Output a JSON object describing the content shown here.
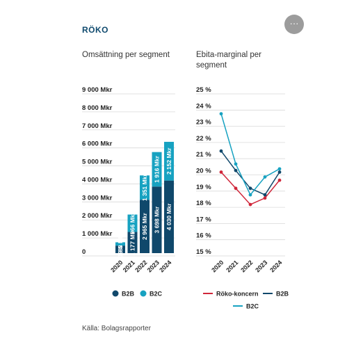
{
  "header": {
    "title": "RÖKO",
    "menu_icon": "ellipsis-icon",
    "menu_label": "···"
  },
  "source_text": "Källa: Bolagsrapporter",
  "colors": {
    "b2b": "#10486b",
    "b2c": "#17a2c1",
    "koncern": "#d0263a",
    "grid": "#d9d9d9"
  },
  "chart_data": [
    {
      "type": "bar",
      "stacked": true,
      "title": "Omsättning per segment",
      "categories": [
        "2020",
        "2021",
        "2022",
        "2023",
        "2024"
      ],
      "series": [
        {
          "name": "B2B",
          "values": [
            419,
            1177,
            2965,
            3698,
            4030
          ],
          "labels": [
            "419 Mkr",
            "1 177 Mkr",
            "2 965 Mkr",
            "3 698 Mkr",
            "4 030 Mkr"
          ]
        },
        {
          "name": "B2C",
          "values": [
            183,
            966,
            1351,
            1916,
            2152
          ],
          "labels": [
            "183 Mkr",
            "966 Mkr",
            "1 351 Mkr",
            "1 916 Mkr",
            "2 152 Mkr"
          ]
        }
      ],
      "yticks": [
        "0",
        "1 000 Mkr",
        "2 000 Mkr",
        "3 000 Mkr",
        "4 000 Mkr",
        "5 000 Mkr",
        "6 000 Mkr",
        "7 000 Mkr",
        "8 000 Mkr",
        "9 000 Mkr"
      ],
      "ylim": [
        0,
        9000
      ],
      "legend": "bottom",
      "grid": true
    },
    {
      "type": "line",
      "title": "Ebita-marginal per segment",
      "categories": [
        "2020",
        "2021",
        "2022",
        "2023",
        "2024"
      ],
      "series": [
        {
          "name": "Röko-koncern",
          "values": [
            20.0,
            19.0,
            18.0,
            18.4,
            19.5
          ]
        },
        {
          "name": "B2B",
          "values": [
            21.3,
            20.1,
            19.0,
            18.6,
            20.0
          ]
        },
        {
          "name": "B2C",
          "values": [
            23.6,
            20.5,
            18.6,
            19.7,
            20.2
          ]
        }
      ],
      "yticks": [
        "15 %",
        "16 %",
        "17 %",
        "18 %",
        "19 %",
        "20 %",
        "21 %",
        "22 %",
        "23 %",
        "24 %",
        "25 %"
      ],
      "ylim": [
        15,
        25
      ],
      "legend": "bottom",
      "grid": true
    }
  ]
}
